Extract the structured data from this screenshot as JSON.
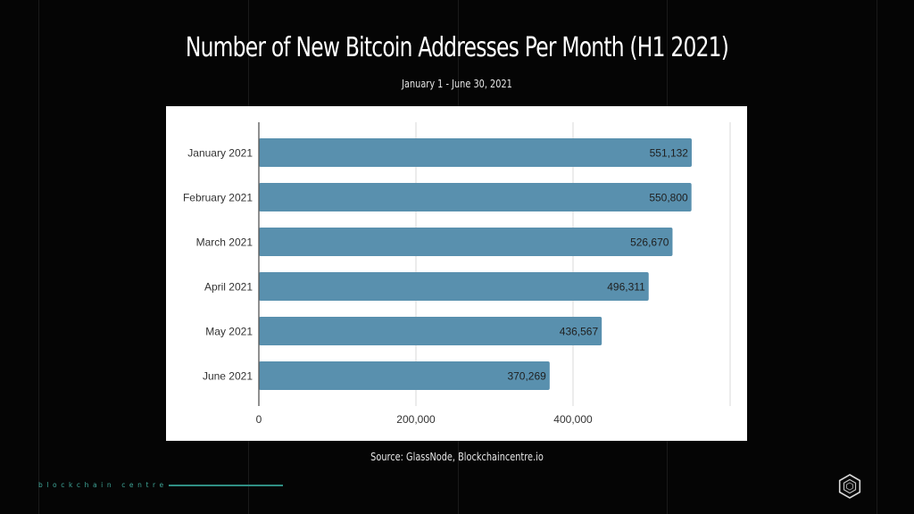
{
  "slide": {
    "title": "Number of New Bitcoin Addresses Per Month (H1 2021)",
    "subtitle": "January  1 - June 30, 2021",
    "source": "Source: GlassNode, Blockchaincentre.io",
    "brand_text": "blockchain centre",
    "logo_icon": "hexagon-logo-icon",
    "colors": {
      "background": "#050505",
      "bar": "#5990ae",
      "brand": "#3fa597"
    }
  },
  "chart_data": {
    "type": "bar",
    "orientation": "horizontal",
    "title": "Number of New Bitcoin Addresses Per Month (H1 2021)",
    "subtitle": "January  1 - June 30, 2021",
    "categories": [
      "January 2021",
      "February 2021",
      "March 2021",
      "April 2021",
      "May 2021",
      "June 2021"
    ],
    "values": [
      551132,
      550800,
      526670,
      496311,
      436567,
      370269
    ],
    "value_labels": [
      "551,132",
      "550,800",
      "526,670",
      "496,311",
      "436,567",
      "370,269"
    ],
    "xlabel": "",
    "ylabel": "",
    "xlim": [
      0,
      600000
    ],
    "x_ticks": [
      0,
      200000,
      400000,
      600000
    ],
    "x_tick_labels": [
      "0",
      "200,000",
      "400,000",
      ""
    ],
    "grid": true,
    "legend": "none",
    "bar_color": "#5990ae"
  }
}
